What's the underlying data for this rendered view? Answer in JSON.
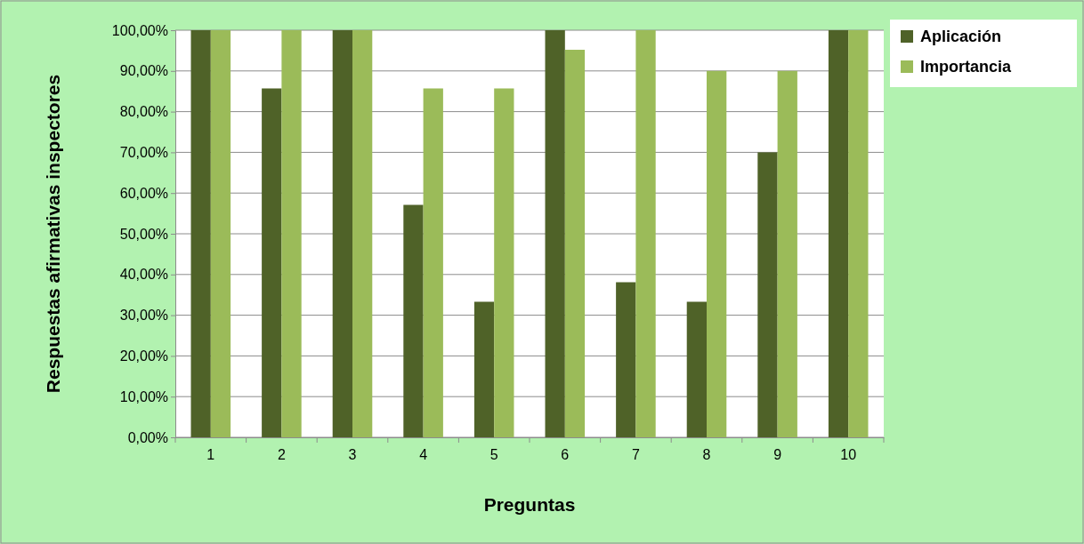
{
  "chart_data": {
    "type": "bar",
    "xlabel": "Preguntas",
    "ylabel": "Respuestas afirmativas inspectores",
    "categories": [
      "1",
      "2",
      "3",
      "4",
      "5",
      "6",
      "7",
      "8",
      "9",
      "10"
    ],
    "series": [
      {
        "name": "Aplicación",
        "color": "#4f6228",
        "values": [
          100,
          85.7,
          100,
          57.1,
          33.3,
          100,
          38.1,
          33.3,
          70,
          100
        ]
      },
      {
        "name": "Importancia",
        "color": "#9bbb59",
        "values": [
          100,
          100,
          100,
          85.7,
          85.7,
          95.2,
          100,
          90,
          90,
          100
        ]
      }
    ],
    "ylim": [
      0,
      100
    ],
    "yticks": [
      {
        "value": 0,
        "label": "0,00%"
      },
      {
        "value": 10,
        "label": "10,00%"
      },
      {
        "value": 20,
        "label": "20,00%"
      },
      {
        "value": 30,
        "label": "30,00%"
      },
      {
        "value": 40,
        "label": "40,00%"
      },
      {
        "value": 50,
        "label": "50,00%"
      },
      {
        "value": 60,
        "label": "60,00%"
      },
      {
        "value": 70,
        "label": "70,00%"
      },
      {
        "value": 80,
        "label": "80,00%"
      },
      {
        "value": 90,
        "label": "90,00%"
      },
      {
        "value": 100,
        "label": "100,00%"
      }
    ],
    "grid": "y",
    "legend": "top right"
  }
}
